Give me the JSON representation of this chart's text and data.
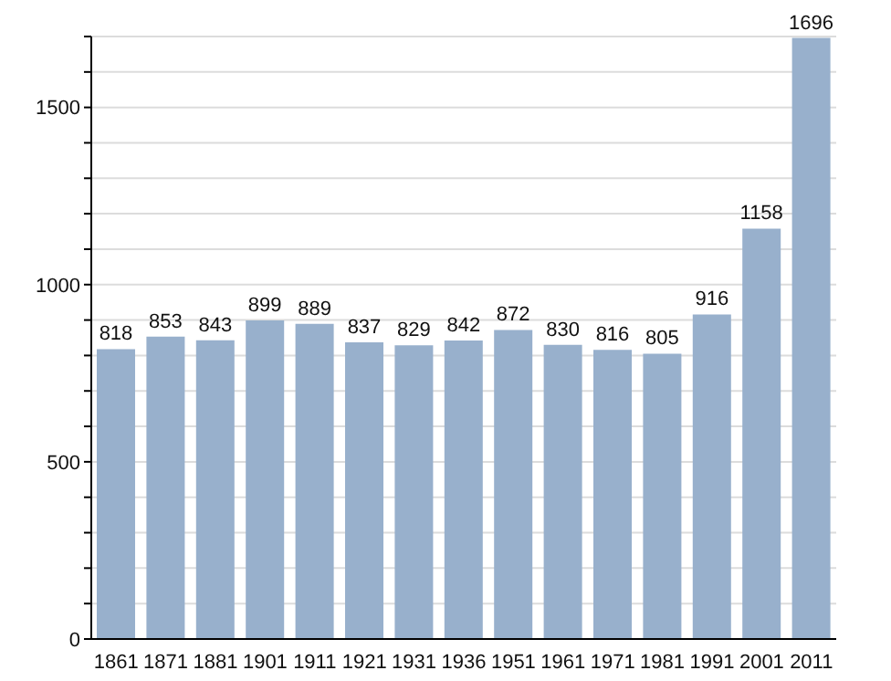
{
  "chart_data": {
    "type": "bar",
    "categories": [
      "1861",
      "1871",
      "1881",
      "1901",
      "1911",
      "1921",
      "1931",
      "1936",
      "1951",
      "1961",
      "1971",
      "1981",
      "1991",
      "2001",
      "2011"
    ],
    "values": [
      818,
      853,
      843,
      899,
      889,
      837,
      829,
      842,
      872,
      830,
      816,
      805,
      916,
      1158,
      1696
    ],
    "color": "#98b0cc",
    "ylim": [
      0,
      1700
    ],
    "yticks": [
      0,
      {
        "value": 100,
        "label": null
      },
      {
        "value": 200,
        "label": null
      },
      {
        "value": 300,
        "label": null
      },
      {
        "value": 400,
        "label": null
      },
      500,
      {
        "value": 600,
        "label": null
      },
      {
        "value": 700,
        "label": null
      },
      {
        "value": 800,
        "label": null
      },
      {
        "value": 900,
        "label": null
      },
      1000,
      {
        "value": 1100,
        "label": null
      },
      {
        "value": 1200,
        "label": null
      },
      {
        "value": 1300,
        "label": null
      },
      {
        "value": 1400,
        "label": null
      },
      1500,
      {
        "value": 1600,
        "label": null
      },
      {
        "value": 1700,
        "label": null
      }
    ],
    "grid": "y",
    "data_labels": true
  }
}
